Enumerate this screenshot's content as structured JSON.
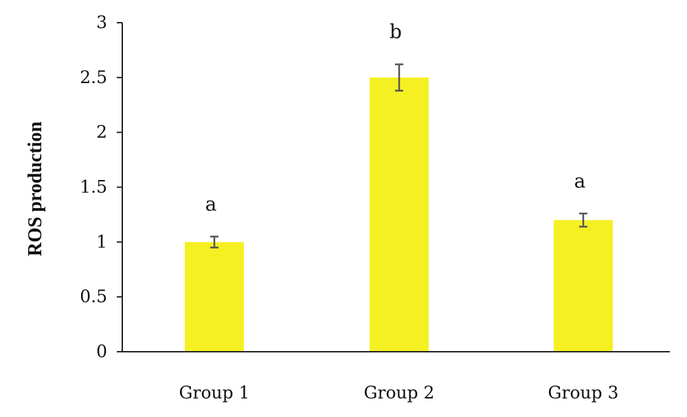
{
  "chart_data": {
    "type": "bar",
    "title": "",
    "xlabel": "",
    "ylabel": "ROS production",
    "ylim": [
      0,
      3
    ],
    "yticks": [
      0,
      0.5,
      1,
      1.5,
      2,
      2.5,
      3
    ],
    "ytick_labels": [
      "0",
      "0.5",
      "1",
      "1.5",
      "2",
      "2.5",
      "3"
    ],
    "grid": false,
    "legend": "none",
    "categories": [
      "Group 1",
      "Group 2",
      "Group 3"
    ],
    "values": [
      1.0,
      2.5,
      1.2
    ],
    "error": [
      0.05,
      0.12,
      0.06
    ],
    "significance_labels": [
      "a",
      "b",
      "a"
    ],
    "colors": {
      "bar": "#f5f022",
      "error_bar": "#555555",
      "axis": "#222222"
    }
  }
}
